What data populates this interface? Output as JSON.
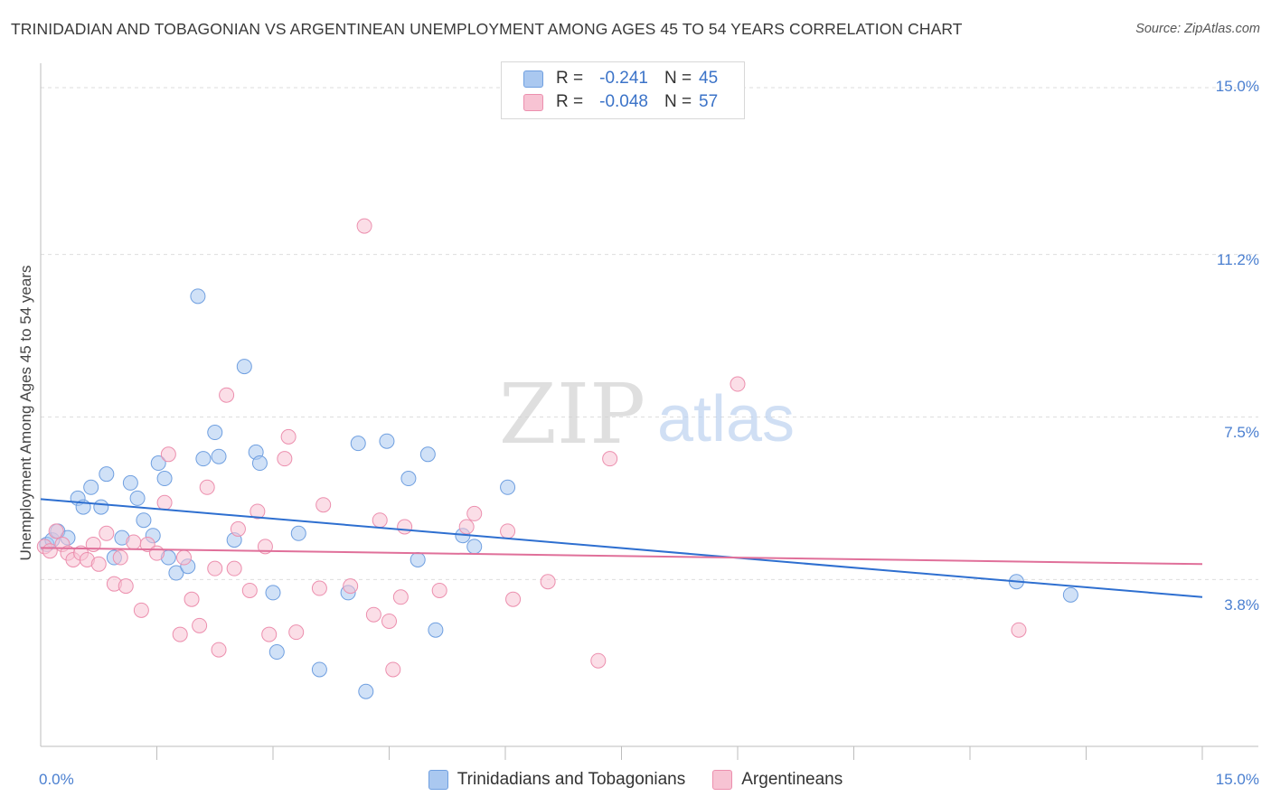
{
  "title": "TRINIDADIAN AND TOBAGONIAN VS ARGENTINEAN UNEMPLOYMENT AMONG AGES 45 TO 54 YEARS CORRELATION CHART",
  "source": "Source: ZipAtlas.com",
  "watermark": {
    "zip": "ZIP",
    "atlas": "atlas"
  },
  "legend": {
    "rows": [
      {
        "r_label": "R =",
        "r_value": "-0.241",
        "n_label": "N =",
        "n_value": "45",
        "color": "#aac8f0",
        "border": "#6f9fe0"
      },
      {
        "r_label": "R =",
        "r_value": "-0.048",
        "n_label": "N =",
        "n_value": "57",
        "color": "#f7c3d3",
        "border": "#ec8fae"
      }
    ]
  },
  "bottom_legend": [
    "Trinidadians and Tobagonians",
    "Argentineans"
  ],
  "chart_data": {
    "type": "scatter",
    "ylabel": "Unemployment Among Ages 45 to 54 years",
    "xlim": [
      0,
      15
    ],
    "ylim": [
      0,
      15
    ],
    "y_ticks": [
      {
        "value": 15.0,
        "label": "15.0%"
      },
      {
        "value": 11.2,
        "label": "11.2%"
      },
      {
        "value": 7.5,
        "label": "7.5%"
      },
      {
        "value": 3.8,
        "label": "3.8%"
      }
    ],
    "x_tick_labels": [
      {
        "value": 0,
        "label": "0.0%"
      },
      {
        "value": 15,
        "label": "15.0%"
      }
    ],
    "series": [
      {
        "name": "Trinidadians and Tobagonians",
        "color": "#aac8f0",
        "stroke": "#6f9fe0",
        "trend_color": "#2e6fd0",
        "trend": [
          [
            0,
            5.63
          ],
          [
            15,
            3.4
          ]
        ],
        "points": [
          [
            0.08,
            4.6
          ],
          [
            0.15,
            4.7
          ],
          [
            0.22,
            4.9
          ],
          [
            0.35,
            4.75
          ],
          [
            0.48,
            5.65
          ],
          [
            0.55,
            5.45
          ],
          [
            0.65,
            5.9
          ],
          [
            0.78,
            5.45
          ],
          [
            0.85,
            6.2
          ],
          [
            0.95,
            4.3
          ],
          [
            1.05,
            4.75
          ],
          [
            1.16,
            6.0
          ],
          [
            1.25,
            5.65
          ],
          [
            1.33,
            5.15
          ],
          [
            1.45,
            4.8
          ],
          [
            1.52,
            6.45
          ],
          [
            1.6,
            6.1
          ],
          [
            1.65,
            4.3
          ],
          [
            1.75,
            3.95
          ],
          [
            1.9,
            4.1
          ],
          [
            2.03,
            10.25
          ],
          [
            2.1,
            6.55
          ],
          [
            2.25,
            7.15
          ],
          [
            2.3,
            6.6
          ],
          [
            2.5,
            4.7
          ],
          [
            2.63,
            8.65
          ],
          [
            2.78,
            6.7
          ],
          [
            2.83,
            6.45
          ],
          [
            3.0,
            3.5
          ],
          [
            3.05,
            2.15
          ],
          [
            3.33,
            4.85
          ],
          [
            3.6,
            1.75
          ],
          [
            3.97,
            3.5
          ],
          [
            4.1,
            6.9
          ],
          [
            4.2,
            1.25
          ],
          [
            4.47,
            6.95
          ],
          [
            4.75,
            6.1
          ],
          [
            4.87,
            4.25
          ],
          [
            5.0,
            6.65
          ],
          [
            5.1,
            2.65
          ],
          [
            5.45,
            4.8
          ],
          [
            5.6,
            4.55
          ],
          [
            6.03,
            5.9
          ],
          [
            12.6,
            3.75
          ],
          [
            13.3,
            3.45
          ]
        ]
      },
      {
        "name": "Argentineans",
        "color": "#f7c3d3",
        "stroke": "#ec8fae",
        "trend_color": "#e0709a",
        "trend": [
          [
            0,
            4.52
          ],
          [
            15,
            4.15
          ]
        ],
        "points": [
          [
            0.05,
            4.55
          ],
          [
            0.12,
            4.45
          ],
          [
            0.2,
            4.9
          ],
          [
            0.28,
            4.6
          ],
          [
            0.35,
            4.4
          ],
          [
            0.42,
            4.25
          ],
          [
            0.52,
            4.4
          ],
          [
            0.6,
            4.25
          ],
          [
            0.68,
            4.6
          ],
          [
            0.75,
            4.15
          ],
          [
            0.85,
            4.85
          ],
          [
            0.95,
            3.7
          ],
          [
            1.03,
            4.3
          ],
          [
            1.1,
            3.65
          ],
          [
            1.2,
            4.65
          ],
          [
            1.3,
            3.1
          ],
          [
            1.38,
            4.6
          ],
          [
            1.5,
            4.4
          ],
          [
            1.6,
            5.55
          ],
          [
            1.65,
            6.65
          ],
          [
            1.8,
            2.55
          ],
          [
            1.85,
            4.3
          ],
          [
            1.95,
            3.35
          ],
          [
            2.05,
            2.75
          ],
          [
            2.15,
            5.9
          ],
          [
            2.25,
            4.05
          ],
          [
            2.3,
            2.2
          ],
          [
            2.4,
            8.0
          ],
          [
            2.5,
            4.05
          ],
          [
            2.55,
            4.95
          ],
          [
            2.7,
            3.55
          ],
          [
            2.8,
            5.35
          ],
          [
            2.9,
            4.55
          ],
          [
            2.95,
            2.55
          ],
          [
            3.15,
            6.55
          ],
          [
            3.2,
            7.05
          ],
          [
            3.3,
            2.6
          ],
          [
            3.6,
            3.6
          ],
          [
            3.65,
            5.5
          ],
          [
            4.0,
            3.65
          ],
          [
            4.18,
            11.85
          ],
          [
            4.3,
            3.0
          ],
          [
            4.38,
            5.15
          ],
          [
            4.5,
            2.85
          ],
          [
            4.55,
            1.75
          ],
          [
            4.65,
            3.4
          ],
          [
            4.7,
            5.0
          ],
          [
            5.15,
            3.55
          ],
          [
            5.5,
            5.0
          ],
          [
            5.6,
            5.3
          ],
          [
            6.03,
            4.9
          ],
          [
            6.1,
            3.35
          ],
          [
            6.55,
            3.75
          ],
          [
            7.2,
            1.95
          ],
          [
            7.35,
            6.55
          ],
          [
            9.0,
            8.25
          ],
          [
            12.63,
            2.65
          ]
        ]
      }
    ]
  }
}
